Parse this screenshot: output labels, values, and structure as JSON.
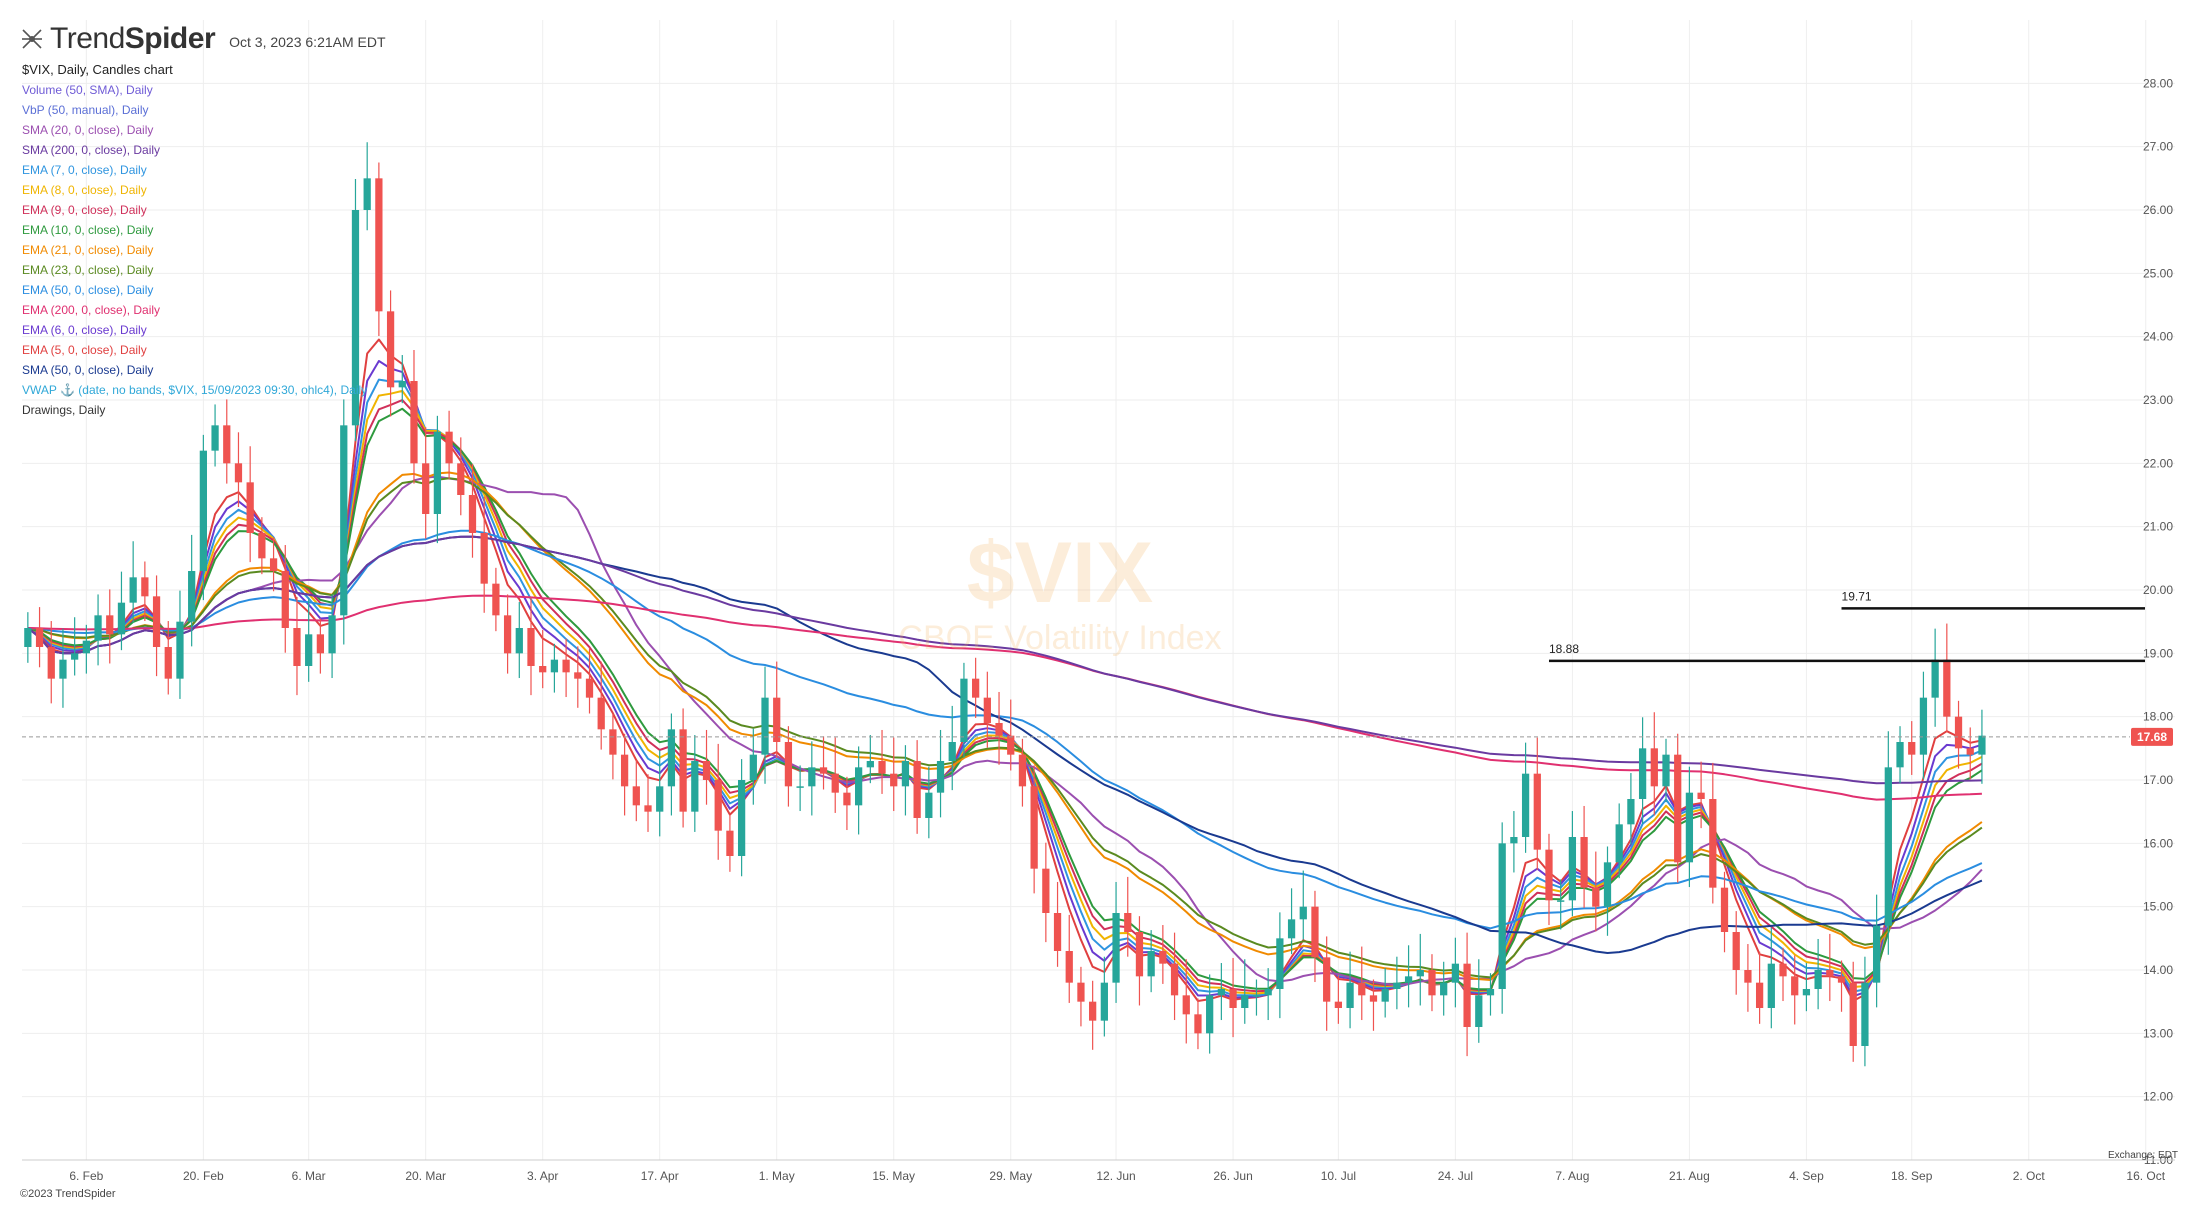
{
  "header": {
    "brand_light": "Trend",
    "brand_bold": "Spider",
    "timestamp": "Oct 3, 2023 6:21AM EDT"
  },
  "legend": {
    "title": "$VIX, Daily, Candles chart",
    "items": [
      {
        "label": "Volume (50, SMA), Daily",
        "color": "#6f5bd6"
      },
      {
        "label": "VbP (50, manual), Daily",
        "color": "#5b6fd6"
      },
      {
        "label": "SMA (20, 0, close), Daily",
        "color": "#9b4fb0"
      },
      {
        "label": "SMA (200, 0, close), Daily",
        "color": "#6a3aa0"
      },
      {
        "label": "EMA (7, 0, close), Daily",
        "color": "#2f95e0"
      },
      {
        "label": "EMA (8, 0, close), Daily",
        "color": "#f0b400"
      },
      {
        "label": "EMA (9, 0, close), Daily",
        "color": "#d0305a"
      },
      {
        "label": "EMA (10, 0, close), Daily",
        "color": "#2e9a3e"
      },
      {
        "label": "EMA (21, 0, close), Daily",
        "color": "#f08a00"
      },
      {
        "label": "EMA (23, 0, close), Daily",
        "color": "#5a8a20"
      },
      {
        "label": "EMA (50, 0, close), Daily",
        "color": "#2a8de0"
      },
      {
        "label": "EMA (200, 0, close), Daily",
        "color": "#e03070"
      },
      {
        "label": "EMA (6, 0, close), Daily",
        "color": "#6a3ad0"
      },
      {
        "label": "EMA (5, 0, close), Daily",
        "color": "#e04040"
      },
      {
        "label": "SMA (50, 0, close), Daily",
        "color": "#1a3a90"
      },
      {
        "label": "VWAP ⚓ (date, no bands, $VIX, 15/09/2023 09:30, ohlc4), Daily",
        "color": "#30a8d8"
      },
      {
        "label": "Drawings, Daily",
        "color": "#333333"
      }
    ]
  },
  "watermark": {
    "symbol": "$VIX",
    "name": "CBOE Volatility Index"
  },
  "footer": {
    "copyright": "©2023 TrendSpider",
    "exchange": "Exchange: EDT"
  },
  "colors": {
    "up": "#26a69a",
    "down": "#ef5350",
    "grid": "#eeeeee",
    "level_line": "#111111",
    "price_tag": "#ef5350"
  },
  "chart_data": {
    "type": "candlestick",
    "symbol": "$VIX",
    "ylim": [
      11,
      29
    ],
    "yticks": [
      "11.00",
      "12.00",
      "13.00",
      "14.00",
      "15.00",
      "16.00",
      "17.00",
      "18.00",
      "19.00",
      "20.00",
      "21.00",
      "22.00",
      "23.00",
      "24.00",
      "25.00",
      "26.00",
      "27.00",
      "28.00"
    ],
    "xticks": [
      {
        "label": "6. Feb",
        "i": 5
      },
      {
        "label": "20. Feb",
        "i": 15
      },
      {
        "label": "6. Mar",
        "i": 24
      },
      {
        "label": "20. Mar",
        "i": 34
      },
      {
        "label": "3. Apr",
        "i": 44
      },
      {
        "label": "17. Apr",
        "i": 54
      },
      {
        "label": "1. May",
        "i": 64
      },
      {
        "label": "15. May",
        "i": 74
      },
      {
        "label": "29. May",
        "i": 84
      },
      {
        "label": "12. Jun",
        "i": 93
      },
      {
        "label": "26. Jun",
        "i": 103
      },
      {
        "label": "10. Jul",
        "i": 112
      },
      {
        "label": "24. Jul",
        "i": 122
      },
      {
        "label": "7. Aug",
        "i": 132
      },
      {
        "label": "21. Aug",
        "i": 142
      },
      {
        "label": "4. Sep",
        "i": 152
      },
      {
        "label": "18. Sep",
        "i": 161
      },
      {
        "label": "2. Oct",
        "i": 171
      },
      {
        "label": "16. Oct",
        "i": 181
      }
    ],
    "total_slots": 184,
    "closes": [
      19.4,
      19.1,
      18.6,
      18.9,
      19.0,
      19.2,
      19.6,
      19.3,
      19.8,
      20.2,
      19.9,
      19.1,
      18.6,
      19.5,
      20.3,
      22.2,
      22.6,
      22.0,
      21.7,
      20.9,
      20.5,
      20.3,
      19.4,
      18.8,
      19.3,
      19.0,
      19.6,
      22.6,
      26.0,
      26.5,
      24.4,
      23.2,
      23.3,
      22.0,
      21.2,
      22.5,
      22.0,
      21.5,
      20.9,
      20.1,
      19.6,
      19.0,
      19.4,
      18.8,
      18.7,
      18.9,
      18.7,
      18.6,
      18.3,
      17.8,
      17.4,
      16.9,
      16.6,
      16.5,
      16.9,
      17.8,
      16.5,
      17.3,
      17.0,
      16.2,
      15.8,
      17.0,
      17.4,
      18.3,
      17.6,
      16.9,
      16.9,
      17.2,
      17.1,
      16.8,
      16.6,
      17.2,
      17.3,
      17.1,
      16.9,
      17.3,
      16.4,
      16.8,
      17.3,
      17.6,
      18.6,
      18.3,
      17.9,
      17.7,
      17.4,
      16.9,
      15.6,
      14.9,
      14.3,
      13.8,
      13.5,
      13.2,
      13.8,
      14.9,
      14.6,
      13.9,
      14.3,
      14.1,
      13.6,
      13.3,
      13.0,
      13.6,
      13.7,
      13.4,
      13.6,
      13.6,
      13.7,
      14.5,
      14.8,
      15.0,
      14.2,
      13.5,
      13.4,
      13.8,
      13.6,
      13.5,
      13.7,
      13.8,
      13.9,
      14.0,
      13.6,
      13.8,
      14.1,
      13.1,
      13.6,
      13.7,
      16.0,
      16.1,
      17.1,
      15.9,
      15.1,
      15.1,
      16.1,
      15.3,
      15.0,
      15.7,
      16.3,
      16.7,
      17.5,
      16.9,
      17.4,
      15.7,
      16.8,
      16.7,
      15.3,
      14.6,
      14.0,
      13.8,
      13.4,
      14.1,
      13.9,
      13.6,
      13.7,
      14.0,
      13.9,
      13.8,
      12.8,
      13.8,
      14.7,
      17.2,
      17.6,
      17.4,
      18.3,
      18.9,
      18.0,
      17.5,
      17.4,
      17.7
    ],
    "last_price": "17.68",
    "levels": [
      {
        "label": "18.88",
        "value": 18.88,
        "from": 130
      },
      {
        "label": "19.71",
        "value": 19.71,
        "from": 155
      }
    ]
  }
}
